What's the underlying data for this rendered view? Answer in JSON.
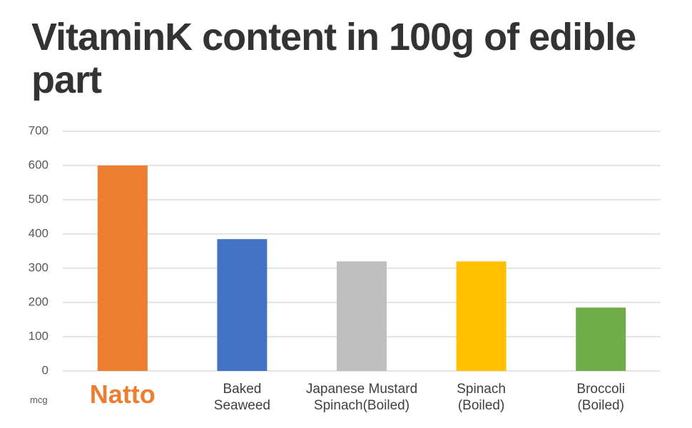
{
  "chart_data": {
    "type": "bar",
    "title": "VitaminK content in 100g of edible part",
    "y_label": "mcg",
    "categories": [
      "Natto",
      "Baked\nSeaweed",
      "Japanese Mustard\nSpinach(Boiled)",
      "Spinach\n(Boiled)",
      "Broccoli\n(Boiled)"
    ],
    "values": [
      600,
      385,
      320,
      320,
      185
    ],
    "colors": [
      "#ed7d31",
      "#4472c4",
      "#bfbfbf",
      "#ffc000",
      "#70ad47"
    ],
    "ylim": [
      0,
      700
    ],
    "yticks": [
      0,
      100,
      200,
      300,
      400,
      500,
      600,
      700
    ],
    "grid": true
  }
}
